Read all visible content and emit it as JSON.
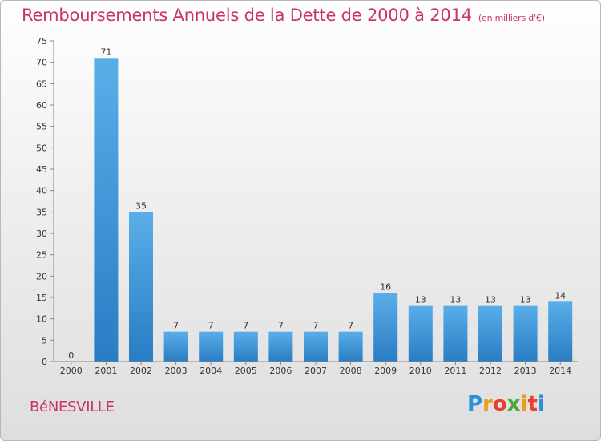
{
  "header": {
    "title": "Remboursements Annuels de la Dette de 2000 à 2014",
    "unit": "(en milliers d'€)"
  },
  "footer": {
    "commune": "BéNESVILLE",
    "logo": "Proxiti"
  },
  "colors": {
    "accent": "#c8336b",
    "bar_light": "#5aaee8",
    "bar_dark": "#1f6fb5"
  },
  "chart_data": {
    "type": "bar",
    "categories": [
      "2000",
      "2001",
      "2002",
      "2003",
      "2004",
      "2005",
      "2006",
      "2007",
      "2008",
      "2009",
      "2010",
      "2011",
      "2012",
      "2013",
      "2014"
    ],
    "values": [
      0,
      71,
      35,
      7,
      7,
      7,
      7,
      7,
      7,
      16,
      13,
      13,
      13,
      13,
      14
    ],
    "title": "Remboursements Annuels de la Dette de 2000 à 2014",
    "ylim": [
      0,
      75
    ],
    "yticks": [
      0,
      5,
      10,
      15,
      20,
      25,
      30,
      35,
      40,
      45,
      50,
      55,
      60,
      65,
      70,
      75
    ],
    "grid": false,
    "data_labels": true
  }
}
